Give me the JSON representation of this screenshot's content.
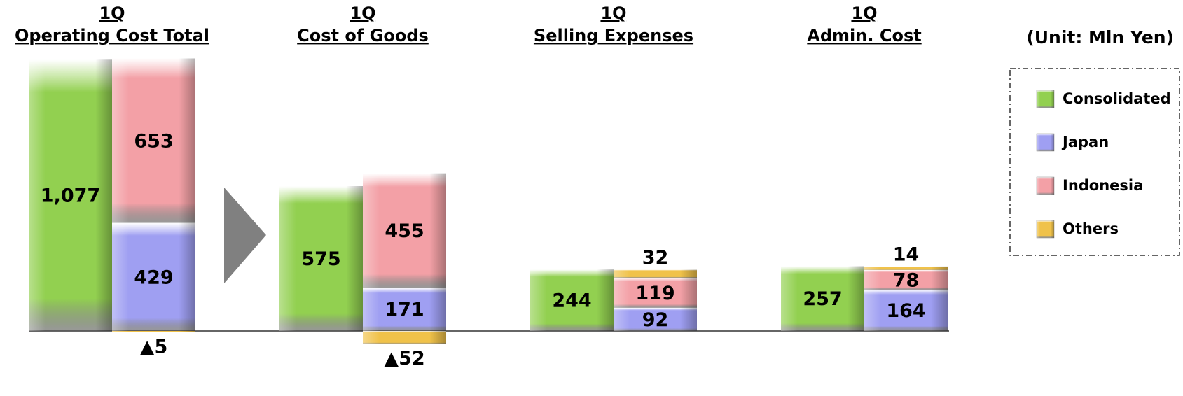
{
  "chart_data": {
    "type": "bar",
    "stacked": true,
    "unit_label": "(Unit: Mln Yen)",
    "categories": [
      [
        "1Q",
        "Operating Cost Total"
      ],
      [
        "1Q",
        "Cost of Goods"
      ],
      [
        "1Q",
        "Selling Expenses"
      ],
      [
        "1Q",
        "Admin. Cost"
      ]
    ],
    "series": [
      {
        "name": "Consolidated",
        "color": "#92d050",
        "stack": "consolidated",
        "values": [
          1077,
          575,
          244,
          257
        ],
        "value_labels": [
          "1,077",
          "575",
          "244",
          "257"
        ]
      },
      {
        "name": "Japan",
        "color": "#9f9ff2",
        "stack": "regions",
        "values": [
          429,
          171,
          92,
          164
        ]
      },
      {
        "name": "Indonesia",
        "color": "#f3a0a6",
        "stack": "regions",
        "values": [
          653,
          455,
          119,
          78
        ]
      },
      {
        "name": "Others",
        "color": "#f0c24a",
        "stack": "regions",
        "values": [
          -5,
          -52,
          32,
          14
        ],
        "value_labels": [
          "▲5",
          "▲52",
          "32",
          "14"
        ]
      }
    ],
    "ylim": [
      -200,
      1200
    ],
    "legend": "right"
  }
}
